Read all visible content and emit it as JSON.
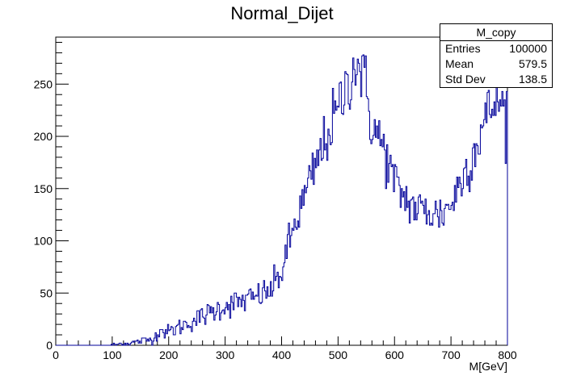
{
  "chart_data": {
    "type": "histogram",
    "title": "Normal_Dijet",
    "xlabel": "M[GeV]",
    "ylabel": "",
    "xlim": [
      0,
      800
    ],
    "ylim": [
      0,
      295
    ],
    "xticks": [
      0,
      100,
      200,
      300,
      400,
      500,
      600,
      700,
      800
    ],
    "yticks": [
      0,
      50,
      100,
      150,
      200,
      250
    ],
    "grid": false,
    "bin_width": 2,
    "line_color": "#000099",
    "legend": "none",
    "stats": {
      "name": "M_copy",
      "rows": [
        {
          "label": "Entries",
          "value": "100000"
        },
        {
          "label": "Mean",
          "value": "579.5"
        },
        {
          "label": "Std Dev",
          "value": "138.5"
        }
      ]
    },
    "envelope": {
      "x": [
        0,
        95,
        110,
        130,
        150,
        170,
        180,
        185,
        190,
        200,
        250,
        300,
        350,
        380,
        400,
        420,
        440,
        460,
        480,
        500,
        520,
        530,
        540,
        550,
        560,
        580,
        600,
        620,
        640,
        660,
        680,
        700,
        720,
        740,
        760,
        780,
        800
      ],
      "y": [
        0,
        0,
        1,
        2,
        4,
        6,
        10,
        18,
        12,
        13,
        25,
        38,
        45,
        52,
        70,
        110,
        140,
        170,
        200,
        225,
        255,
        270,
        265,
        245,
        210,
        190,
        155,
        140,
        130,
        128,
        125,
        135,
        160,
        185,
        215,
        235,
        225
      ]
    }
  }
}
